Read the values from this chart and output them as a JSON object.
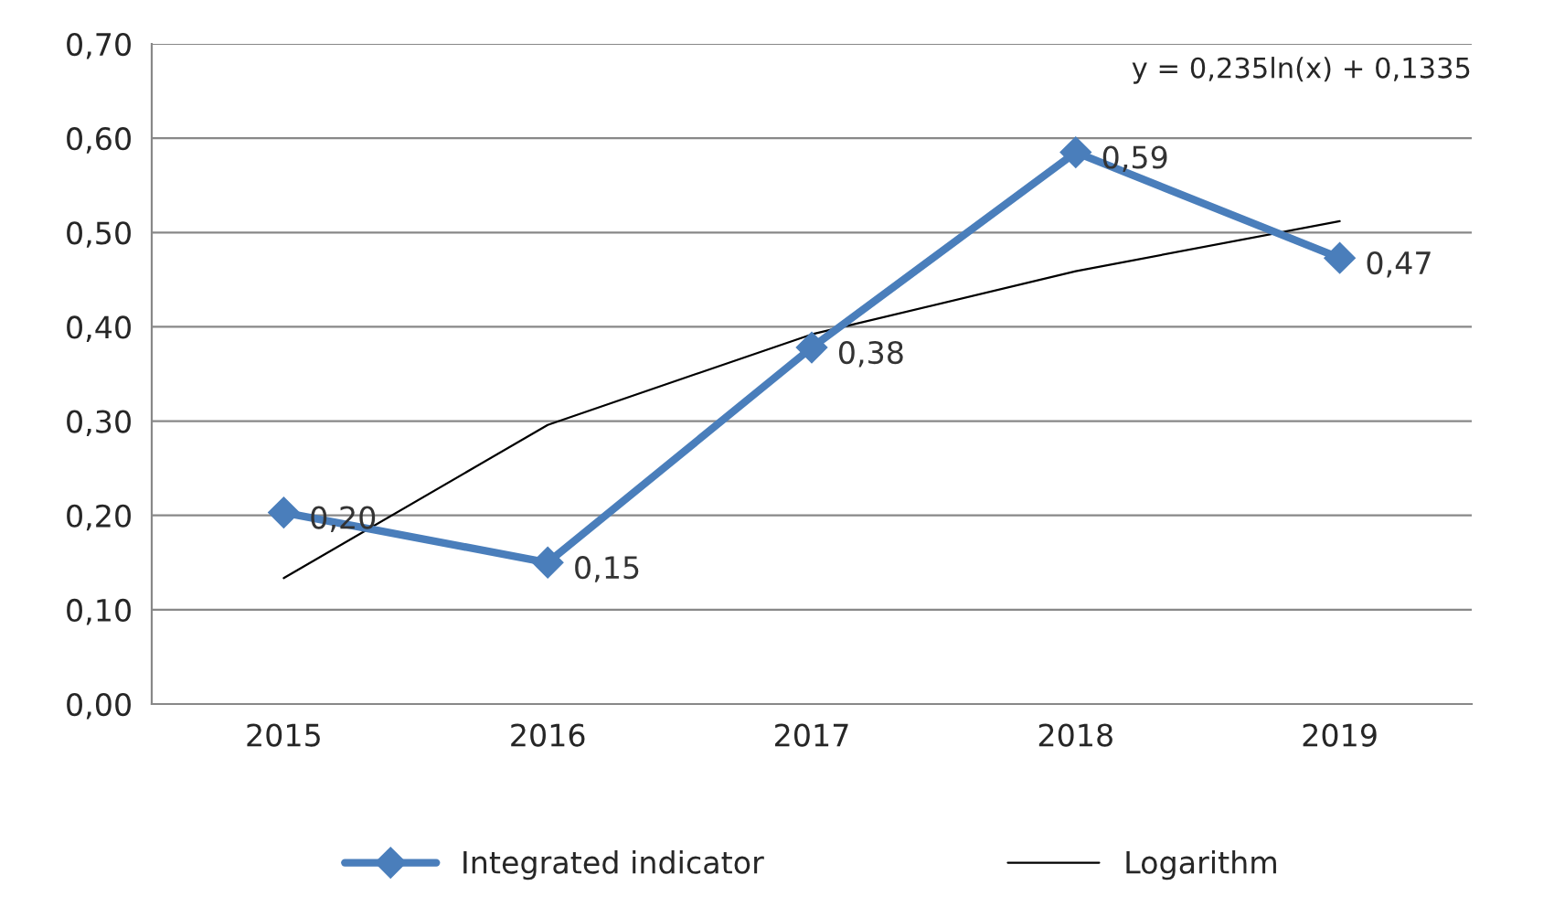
{
  "chart_data": {
    "type": "line",
    "categories": [
      "2015",
      "2016",
      "2017",
      "2018",
      "2019"
    ],
    "series": [
      {
        "name": "Integrated indicator",
        "color": "#4a7ebb",
        "values": [
          0.203,
          0.15,
          0.378,
          0.585,
          0.473
        ],
        "value_labels": [
          "0,20",
          "0,15",
          "0,38",
          "0,59",
          "0,47"
        ],
        "marker": "diamond",
        "line_style": "solid"
      },
      {
        "name": "Logarithm",
        "type": "line",
        "color": "#000000",
        "values": [
          0.1335,
          0.296,
          0.392,
          0.459,
          0.512
        ],
        "marker": "none",
        "line_style": "solid"
      }
    ],
    "ylim": [
      0,
      0.7
    ],
    "yticks": [
      {
        "value": 0,
        "label": "0,00"
      },
      {
        "value": 0.1,
        "label": "0,10"
      },
      {
        "value": 0.2,
        "label": "0,20"
      },
      {
        "value": 0.3,
        "label": "0,30"
      },
      {
        "value": 0.4,
        "label": "0,40"
      },
      {
        "value": 0.5,
        "label": "0,50"
      },
      {
        "value": 0.6,
        "label": "0,60"
      },
      {
        "value": 0.7,
        "label": "0,70"
      }
    ],
    "grid": "y",
    "legend": "bottom",
    "annotations": [
      "y = 0,235ln(x) + 0,1335"
    ]
  }
}
